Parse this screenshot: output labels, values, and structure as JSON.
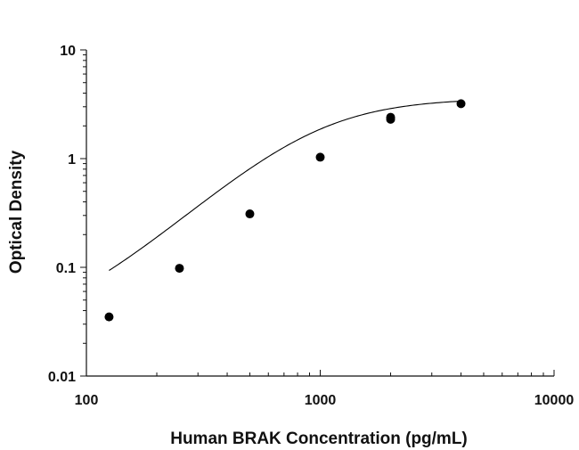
{
  "chart_data": {
    "type": "scatter",
    "title": "",
    "xlabel": "Human BRAK Concentration (pg/mL)",
    "ylabel": "Optical Density",
    "xscale": "log",
    "yscale": "log",
    "xlim": [
      100,
      10000
    ],
    "ylim": [
      0.01,
      10
    ],
    "xticks": [
      {
        "value": 100,
        "label": "100"
      },
      {
        "value": 1000,
        "label": "1000"
      },
      {
        "value": 10000,
        "label": "10000"
      }
    ],
    "yticks": [
      {
        "value": 0.01,
        "label": "0.01"
      },
      {
        "value": 0.1,
        "label": "0.1"
      },
      {
        "value": 1,
        "label": "1"
      },
      {
        "value": 10,
        "label": "10"
      }
    ],
    "grid": false,
    "legend": "none",
    "points": [
      {
        "x": 125,
        "y": 0.035
      },
      {
        "x": 250,
        "y": 0.098
      },
      {
        "x": 500,
        "y": 0.31
      },
      {
        "x": 1000,
        "y": 1.03
      },
      {
        "x": 2000,
        "y": 2.3
      },
      {
        "x": 2000,
        "y": 2.4
      },
      {
        "x": 4000,
        "y": 3.2
      }
    ],
    "fit_curve": {
      "type": "4PL",
      "a": 0.025,
      "d": 3.6,
      "c": 970,
      "b": 1.92,
      "x_range": [
        125,
        4000
      ]
    },
    "colors": {
      "axis": "#111111",
      "points": "#000000",
      "curve": "#000000"
    }
  }
}
